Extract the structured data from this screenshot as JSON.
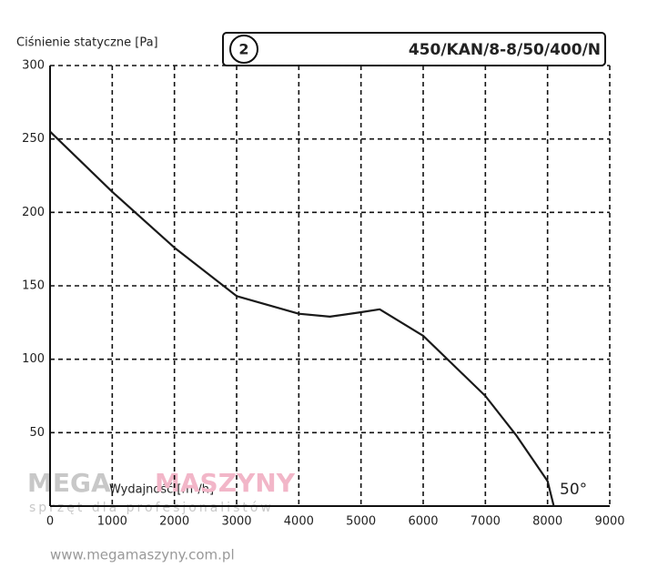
{
  "chart_data": {
    "type": "line",
    "title": "450/KAN/8-8/50/400/N",
    "curve_number": "2",
    "y_label": "Ciśnienie statyczne [Pa]",
    "x_label": "Wydajność [m³/h]",
    "annotation": "50°",
    "x": [
      0,
      1000,
      2000,
      3000,
      4000,
      4500,
      5000,
      5300,
      6000,
      7000,
      7500,
      8000,
      8100
    ],
    "values": [
      255,
      214,
      176,
      143,
      131,
      129,
      132,
      134,
      116,
      75,
      48,
      17,
      0
    ],
    "color": "#1a1a1a",
    "xlim": [
      0,
      9000
    ],
    "xticks": [
      0,
      1000,
      2000,
      3000,
      4000,
      5000,
      6000,
      7000,
      8000,
      9000
    ],
    "ylim": [
      0,
      300
    ],
    "yticks": [
      50,
      100,
      150,
      200,
      250,
      300
    ],
    "grid": true,
    "watermark": {
      "brand_left": "MEGA",
      "brand_right": "MASZYNY",
      "tagline": "sprzęt dla profesjonalistów",
      "url": "www.megamaszyny.com.pl"
    }
  }
}
